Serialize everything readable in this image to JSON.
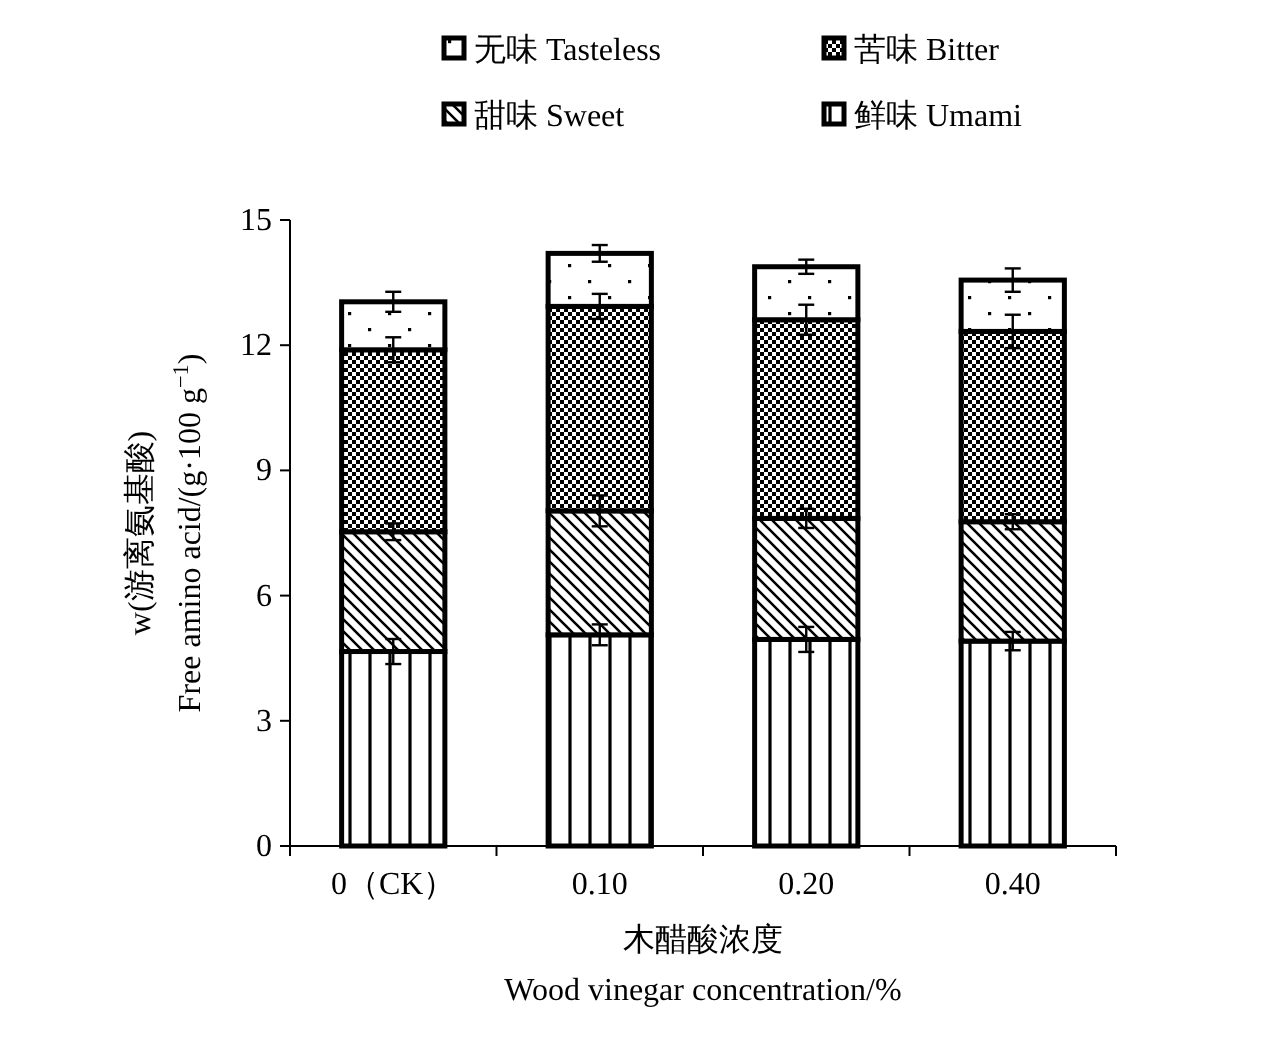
{
  "chart_data": {
    "type": "bar",
    "stacked": true,
    "xlabel": "木醋酸浓度\nWood vinegar concentration/%",
    "ylabel": "w(游离氨基酸)\nFree amino acid/(g·100 g$^{−1}$)",
    "categories": [
      "0（CK）",
      "0.10",
      "0.20",
      "0.40"
    ],
    "series": [
      {
        "name": "鲜味 Umami",
        "color": "#000000",
        "values": [
          4.66,
          5.06,
          4.95,
          4.91
        ],
        "errors": [
          0.3,
          0.25,
          0.3,
          0.22
        ]
      },
      {
        "name": "甜味 Sweet",
        "color": "#000000",
        "values": [
          2.87,
          2.97,
          2.9,
          2.86
        ],
        "errors": [
          0.2,
          0.37,
          0.23,
          0.18
        ]
      },
      {
        "name": "苦味 Bitter",
        "color": "#000000",
        "values": [
          4.36,
          4.9,
          4.76,
          4.56
        ],
        "errors": [
          0.3,
          0.3,
          0.36,
          0.4
        ]
      },
      {
        "name": "无味 Tasteless",
        "color": "#000000",
        "values": [
          1.15,
          1.27,
          1.27,
          1.23
        ],
        "errors": [
          0.24,
          0.2,
          0.17,
          0.28
        ]
      }
    ],
    "ylim": [
      0,
      15
    ],
    "yticks": [
      0,
      3,
      6,
      9,
      12,
      15
    ],
    "grid": false,
    "legend": "top"
  }
}
